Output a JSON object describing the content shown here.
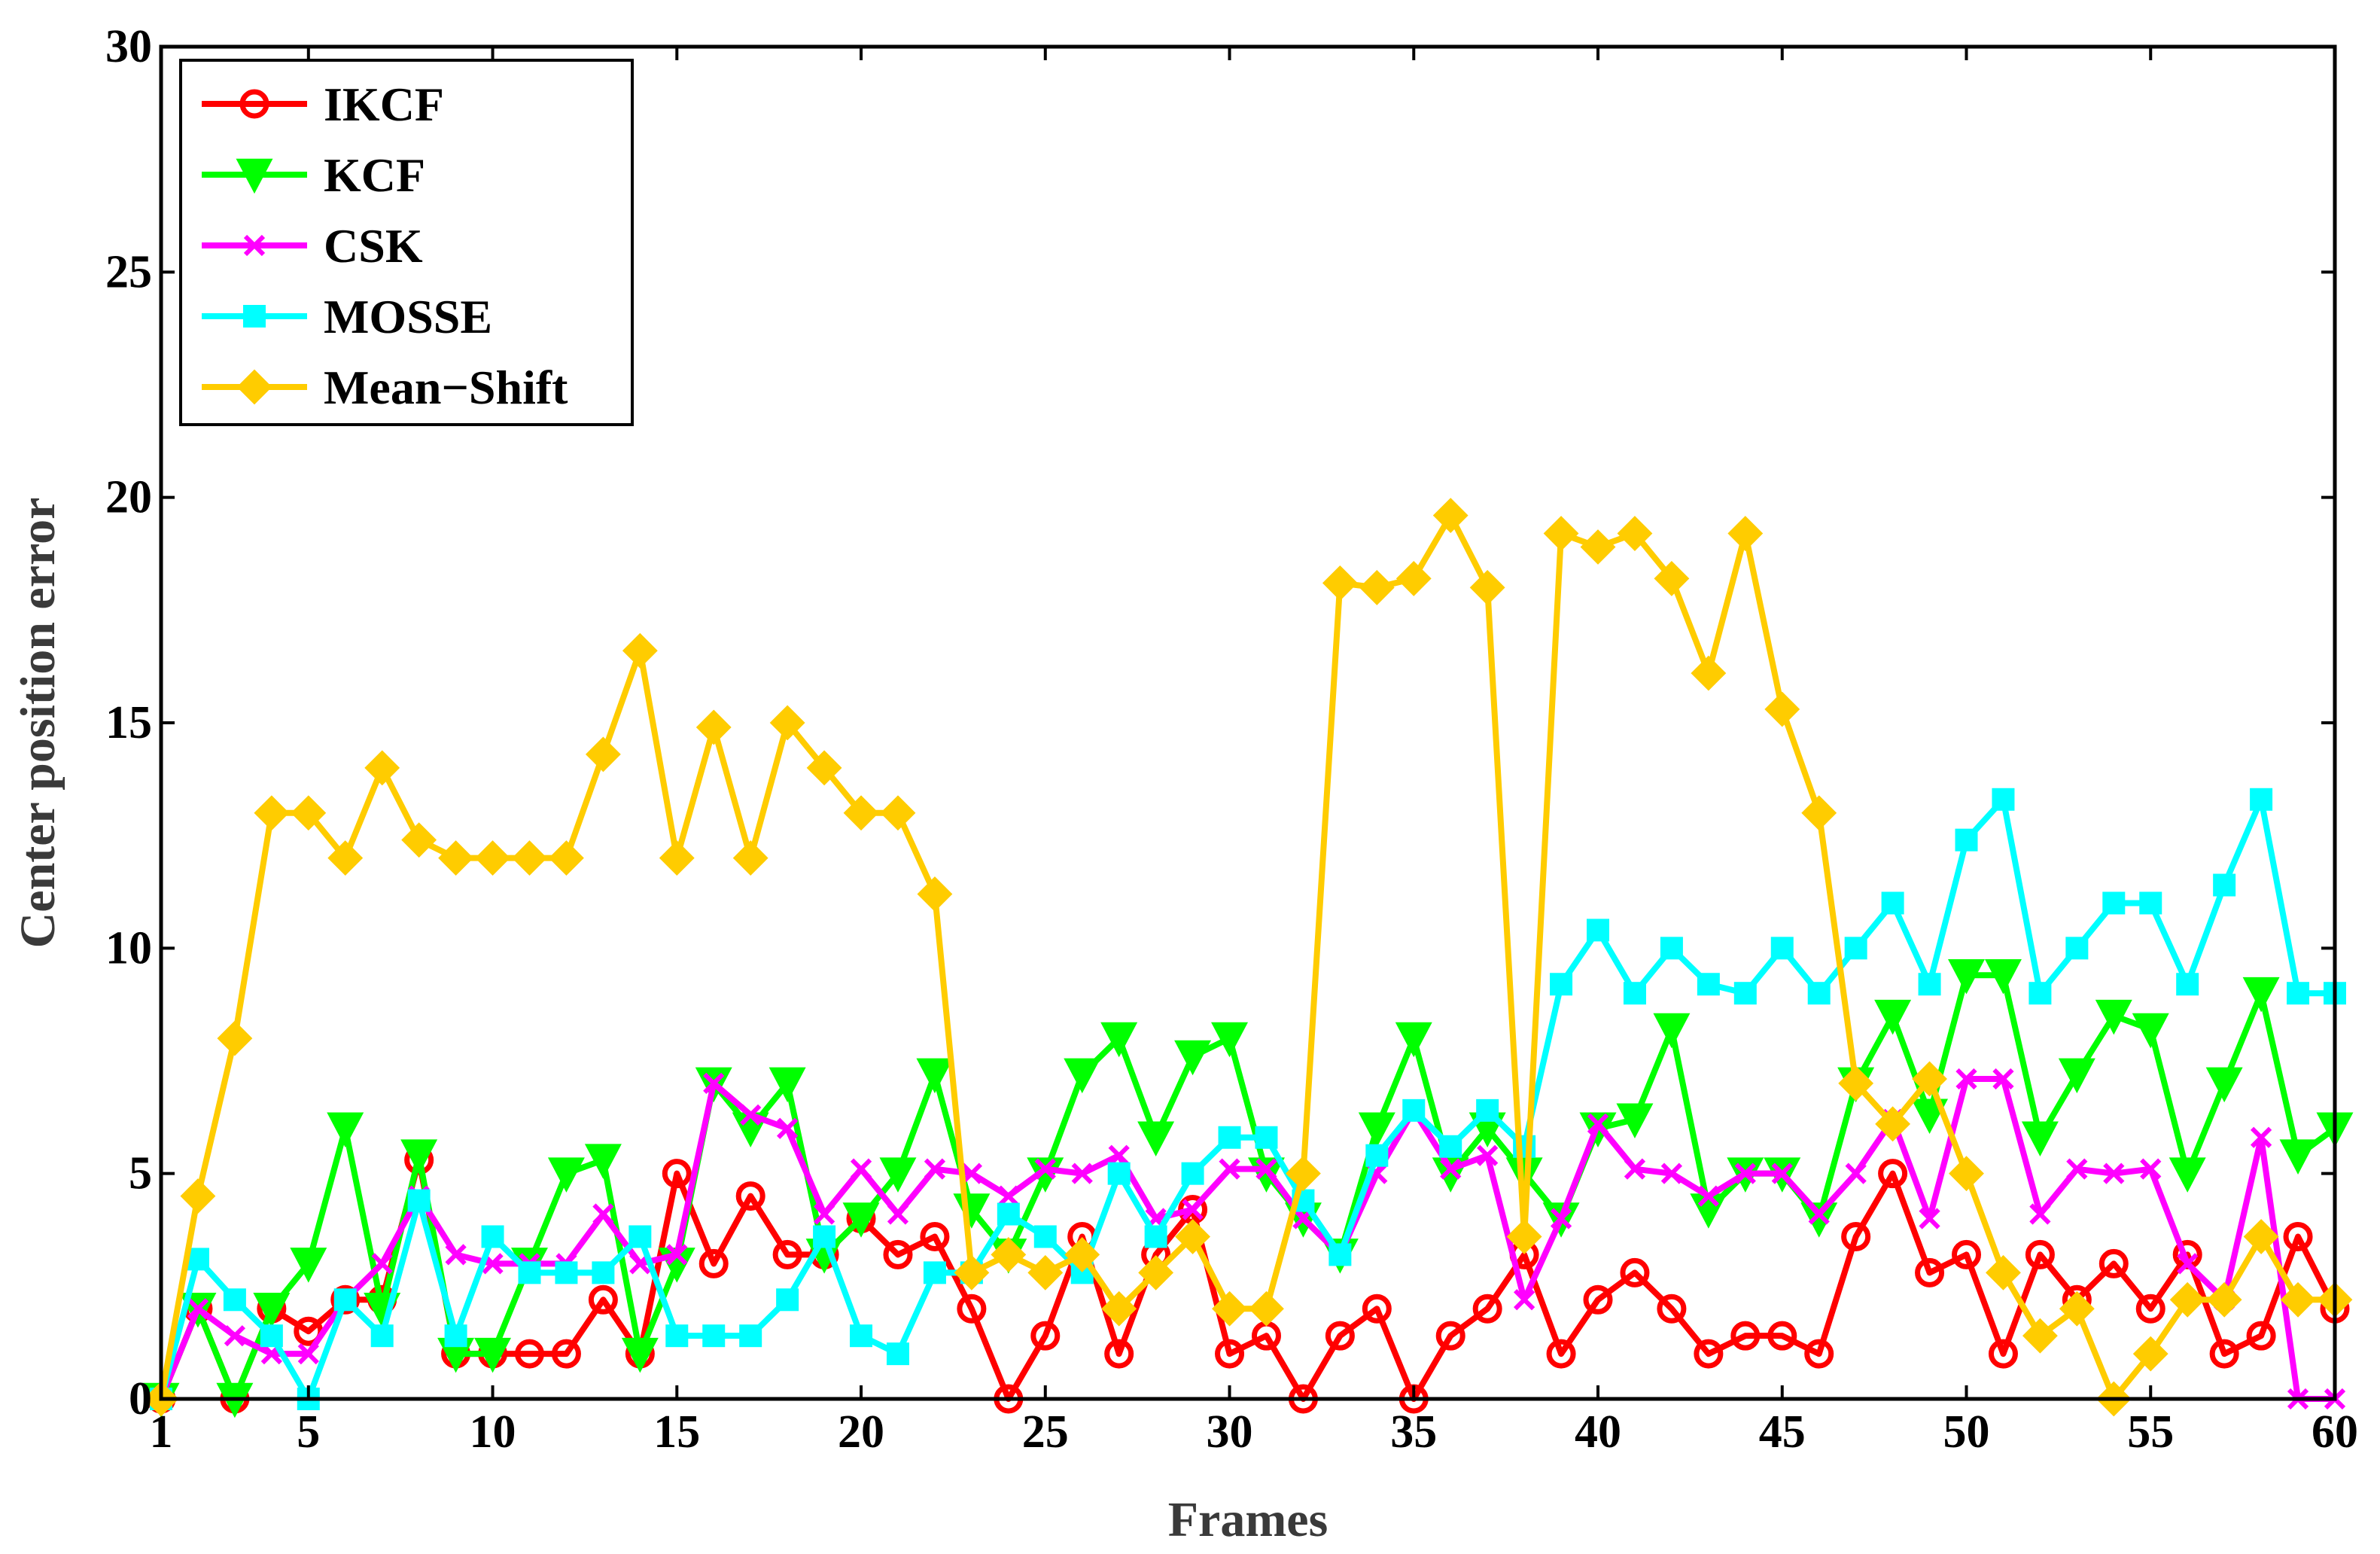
{
  "chart_data": {
    "type": "line",
    "title": "",
    "xlabel": "Frames",
    "ylabel": "Center position error",
    "xlim": [
      1,
      60
    ],
    "ylim": [
      0,
      30
    ],
    "xticks": [
      1,
      5,
      10,
      15,
      20,
      25,
      30,
      35,
      40,
      45,
      50,
      55,
      60
    ],
    "yticks": [
      0,
      5,
      10,
      15,
      20,
      25,
      30
    ],
    "grid": false,
    "legend_position": "top-left",
    "x": [
      1,
      2,
      3,
      4,
      5,
      6,
      7,
      8,
      9,
      10,
      11,
      12,
      13,
      14,
      15,
      16,
      17,
      18,
      19,
      20,
      21,
      22,
      23,
      24,
      25,
      26,
      27,
      28,
      29,
      30,
      31,
      32,
      33,
      34,
      35,
      36,
      37,
      38,
      39,
      40,
      41,
      42,
      43,
      44,
      45,
      46,
      47,
      48,
      49,
      50,
      51,
      52,
      53,
      54,
      55,
      56,
      57,
      58,
      59,
      60
    ],
    "series": [
      {
        "name": "IKCF",
        "color": "#ff0000",
        "marker": "circle",
        "values": [
          0,
          2,
          0,
          2,
          1.5,
          2.2,
          2.2,
          5.3,
          1,
          1,
          1,
          1,
          2.2,
          1,
          5,
          3,
          4.5,
          3.2,
          3.2,
          4,
          3.2,
          3.6,
          2,
          0,
          1.4,
          3.6,
          1,
          3.2,
          4.2,
          1,
          1.4,
          0,
          1.4,
          2,
          0,
          1.4,
          2,
          3.2,
          1,
          2.2,
          2.8,
          2,
          1,
          1.4,
          1.4,
          1,
          3.6,
          5,
          2.8,
          3.2,
          1,
          3.2,
          2.2,
          3,
          2,
          3.2,
          1,
          1.4,
          3.6,
          2
        ]
      },
      {
        "name": "KCF",
        "color": "#00ff00",
        "marker": "triangle-down",
        "values": [
          0,
          2,
          0,
          2,
          3,
          6,
          2,
          5.4,
          1,
          1,
          3,
          5,
          5.3,
          1,
          3,
          7,
          6,
          7,
          3.2,
          4,
          5,
          7.2,
          4.2,
          3.2,
          5,
          7.2,
          8,
          5.8,
          7.6,
          8,
          5,
          4,
          3.2,
          6,
          8,
          5,
          6,
          5,
          4,
          6,
          6.2,
          8.2,
          4.2,
          5,
          5,
          4,
          7,
          8.5,
          6.3,
          9.4,
          9.4,
          5.8,
          7.2,
          8.5,
          8.2,
          5,
          7,
          9,
          5.4,
          6
        ]
      },
      {
        "name": "CSK",
        "color": "#ff00ff",
        "marker": "x",
        "values": [
          0,
          2,
          1.4,
          1,
          1,
          2.2,
          3,
          4.5,
          3.2,
          3,
          3,
          3,
          4.1,
          3,
          3.2,
          7,
          6.3,
          6,
          4.1,
          5.1,
          4.1,
          5.1,
          5,
          4.5,
          5.1,
          5,
          5.4,
          4,
          4.2,
          5.1,
          5.1,
          4,
          3.2,
          5,
          6.4,
          5.1,
          5.4,
          2.2,
          4,
          6.1,
          5.1,
          5,
          4.5,
          5,
          5,
          4.1,
          5,
          6.2,
          4,
          7.1,
          7.1,
          4.1,
          5.1,
          5,
          5.1,
          3,
          2.2,
          5.8,
          0,
          0
        ]
      },
      {
        "name": "MOSSE",
        "color": "#00ffff",
        "marker": "square",
        "values": [
          0,
          3.1,
          2.2,
          1.4,
          0,
          2.2,
          1.4,
          4.4,
          1.4,
          3.6,
          2.8,
          2.8,
          2.8,
          3.6,
          1.4,
          1.4,
          1.4,
          2.2,
          3.6,
          1.4,
          1,
          2.8,
          2.8,
          4.1,
          3.6,
          2.8,
          5,
          3.6,
          5,
          5.8,
          5.8,
          4.4,
          3.2,
          5.4,
          6.4,
          5.6,
          6.4,
          5.6,
          9.2,
          10.4,
          9,
          10,
          9.2,
          9,
          10,
          9,
          10,
          11,
          9.2,
          12.4,
          13.3,
          9,
          10,
          11,
          11,
          9.2,
          11.4,
          13.3,
          9,
          9
        ]
      },
      {
        "name": "Mean−Shift",
        "color": "#ffcc00",
        "marker": "diamond",
        "values": [
          0,
          4.5,
          8,
          13,
          13,
          12,
          14,
          12.4,
          12,
          12,
          12,
          12,
          14.3,
          16.6,
          12,
          14.9,
          12,
          15,
          14,
          13,
          13,
          11.2,
          2.8,
          3.2,
          2.8,
          3.2,
          2,
          2.8,
          3.6,
          2,
          2,
          5,
          18.1,
          18,
          18.2,
          19.6,
          18,
          3.6,
          19.2,
          18.9,
          19.2,
          18.2,
          16.1,
          19.2,
          15.3,
          13,
          7,
          6.1,
          7.1,
          5,
          2.8,
          1.4,
          2,
          0,
          1,
          2.2,
          2.2,
          3.6,
          2.2,
          2.2
        ]
      }
    ]
  }
}
